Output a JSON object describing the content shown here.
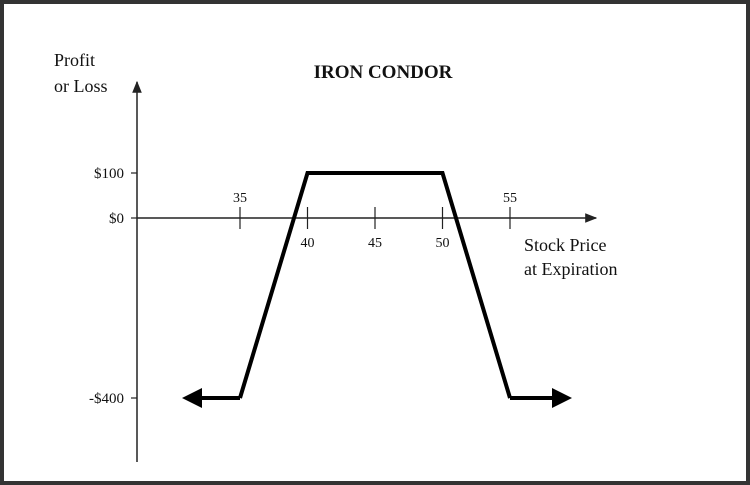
{
  "chart_data": {
    "type": "line",
    "title": "IRON CONDOR",
    "ylabel_lines": [
      "Profit",
      "or Loss"
    ],
    "xlabel_lines": [
      "Stock Price",
      "at Expiration"
    ],
    "y_ticks": [
      {
        "value": 100,
        "label": "$100"
      },
      {
        "value": 0,
        "label": "$0"
      },
      {
        "value": -400,
        "label": "-$400"
      }
    ],
    "x_ticks_above": [
      {
        "value": 35,
        "label": "35"
      },
      {
        "value": 55,
        "label": "55"
      }
    ],
    "x_ticks_below": [
      {
        "value": 40,
        "label": "40"
      },
      {
        "value": 45,
        "label": "45"
      },
      {
        "value": 50,
        "label": "50"
      }
    ],
    "series": [
      {
        "x": [
          35,
          40,
          50,
          55
        ],
        "y": [
          -400,
          100,
          100,
          -400
        ],
        "arrows_beyond": [
          "left",
          "right"
        ]
      }
    ],
    "grid": false,
    "colors": {
      "line": "#000000",
      "axis": "#222222",
      "text": "#111111",
      "frame": "#333333"
    }
  }
}
